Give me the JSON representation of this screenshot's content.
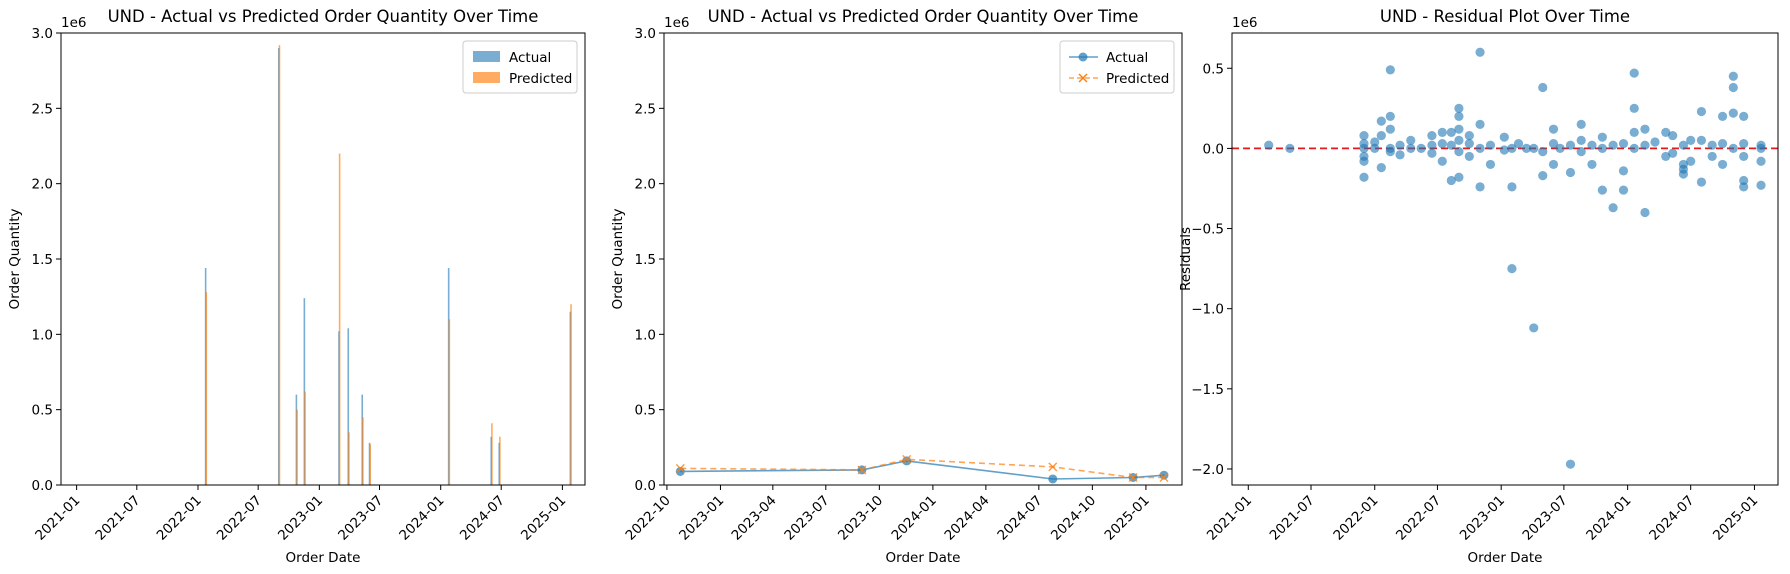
{
  "chart_data": [
    {
      "type": "bar",
      "title": "UND - Actual vs Predicted Order Quantity Over Time",
      "xlabel": "Order Date",
      "ylabel": "Order Quantity",
      "offset_text": "1e6",
      "xlim": [
        "2020-11-15",
        "2025-03-10"
      ],
      "ylim": [
        0,
        3.0
      ],
      "x_ticks": [
        "2021-01",
        "2021-07",
        "2022-01",
        "2022-07",
        "2023-01",
        "2023-07",
        "2024-01",
        "2024-07",
        "2025-01"
      ],
      "y_ticks": [
        "0.0",
        "0.5",
        "1.0",
        "1.5",
        "2.0",
        "2.5",
        "3.0"
      ],
      "legend": "top-right",
      "series": [
        {
          "name": "Actual",
          "color": "#1f77b4",
          "points": [
            [
              "2022-01-24",
              1.44
            ],
            [
              "2022-09-01",
              2.9
            ],
            [
              "2022-10-24",
              0.6
            ],
            [
              "2022-11-17",
              1.24
            ],
            [
              "2023-03-01",
              1.02
            ],
            [
              "2023-03-29",
              1.04
            ],
            [
              "2023-05-10",
              0.6
            ],
            [
              "2023-06-01",
              0.28
            ],
            [
              "2024-01-25",
              1.44
            ],
            [
              "2024-06-01",
              0.32
            ],
            [
              "2024-06-25",
              0.28
            ],
            [
              "2025-01-25",
              1.15
            ]
          ]
        },
        {
          "name": "Predicted",
          "color": "#ff7f0e",
          "points": [
            [
              "2022-01-26",
              1.28
            ],
            [
              "2022-09-03",
              2.92
            ],
            [
              "2022-10-26",
              0.5
            ],
            [
              "2022-11-19",
              0.62
            ],
            [
              "2023-03-03",
              2.2
            ],
            [
              "2023-03-31",
              0.35
            ],
            [
              "2023-05-12",
              0.45
            ],
            [
              "2023-06-03",
              0.27
            ],
            [
              "2024-01-27",
              1.1
            ],
            [
              "2024-06-03",
              0.41
            ],
            [
              "2024-06-27",
              0.32
            ],
            [
              "2025-01-27",
              1.2
            ]
          ]
        }
      ]
    },
    {
      "type": "line",
      "title": "UND - Actual vs Predicted Order Quantity Over Time",
      "xlabel": "Order Date",
      "ylabel": "Order Quantity",
      "offset_text": "1e6",
      "xlim": [
        "2022-09-26",
        "2025-03-04"
      ],
      "ylim": [
        0,
        3.0
      ],
      "x_ticks": [
        "2022-10",
        "2023-01",
        "2023-04",
        "2023-07",
        "2023-10",
        "2024-01",
        "2024-04",
        "2024-07",
        "2024-10",
        "2025-01"
      ],
      "y_ticks": [
        "0.0",
        "0.5",
        "1.0",
        "1.5",
        "2.0",
        "2.5",
        "3.0"
      ],
      "legend": "top-right",
      "series": [
        {
          "name": "Actual",
          "color": "#1f77b4",
          "marker": "circle",
          "points": [
            [
              "2022-10-24",
              0.09
            ],
            [
              "2023-09-01",
              0.1
            ],
            [
              "2023-11-17",
              0.16
            ],
            [
              "2024-07-25",
              0.04
            ],
            [
              "2024-12-10",
              0.05
            ],
            [
              "2025-02-01",
              0.065
            ]
          ]
        },
        {
          "name": "Predicted",
          "color": "#ff7f0e",
          "marker": "x",
          "points": [
            [
              "2022-10-24",
              0.11
            ],
            [
              "2023-09-01",
              0.1
            ],
            [
              "2023-11-17",
              0.17
            ],
            [
              "2024-07-25",
              0.12
            ],
            [
              "2024-12-10",
              0.05
            ],
            [
              "2025-02-01",
              0.05
            ]
          ]
        }
      ]
    },
    {
      "type": "scatter",
      "title": "UND - Residual Plot Over Time",
      "xlabel": "Order Date",
      "ylabel": "Residuals",
      "offset_text": "1e6",
      "xlim": [
        "2020-11-15",
        "2025-03-10"
      ],
      "ylim": [
        -2.1,
        0.72
      ],
      "x_ticks": [
        "2021-01",
        "2021-07",
        "2022-01",
        "2022-07",
        "2023-01",
        "2023-07",
        "2024-01",
        "2024-07",
        "2025-01"
      ],
      "y_ticks": [
        "−2.0",
        "−1.5",
        "−1.0",
        "−0.5",
        "0.0",
        "0.5"
      ],
      "reference_line": {
        "y": 0,
        "color": "#e41a1c",
        "style": "dashed"
      },
      "series": [
        {
          "color": "#1f77b4",
          "points": [
            [
              "2021-03-01",
              0.02
            ],
            [
              "2021-05-01",
              0.0
            ],
            [
              "2021-12-01",
              0.08
            ],
            [
              "2021-12-01",
              0.0
            ],
            [
              "2021-12-01",
              -0.05
            ],
            [
              "2021-12-01",
              -0.18
            ],
            [
              "2021-12-01",
              -0.08
            ],
            [
              "2021-12-01",
              0.03
            ],
            [
              "2022-01-01",
              0.0
            ],
            [
              "2022-01-01",
              0.04
            ],
            [
              "2022-01-20",
              0.17
            ],
            [
              "2022-01-20",
              -0.12
            ],
            [
              "2022-01-20",
              0.08
            ],
            [
              "2022-02-15",
              0.49
            ],
            [
              "2022-02-15",
              0.2
            ],
            [
              "2022-02-15",
              0.12
            ],
            [
              "2022-02-15",
              -0.02
            ],
            [
              "2022-02-15",
              0.0
            ],
            [
              "2022-03-15",
              0.02
            ],
            [
              "2022-03-15",
              -0.04
            ],
            [
              "2022-04-15",
              0.0
            ],
            [
              "2022-04-15",
              0.05
            ],
            [
              "2022-05-15",
              0.0
            ],
            [
              "2022-06-15",
              0.08
            ],
            [
              "2022-06-15",
              0.02
            ],
            [
              "2022-06-15",
              -0.03
            ],
            [
              "2022-07-15",
              0.1
            ],
            [
              "2022-07-15",
              0.03
            ],
            [
              "2022-07-15",
              -0.08
            ],
            [
              "2022-08-10",
              0.1
            ],
            [
              "2022-08-10",
              -0.2
            ],
            [
              "2022-08-10",
              0.02
            ],
            [
              "2022-09-01",
              0.25
            ],
            [
              "2022-09-01",
              0.2
            ],
            [
              "2022-09-01",
              0.12
            ],
            [
              "2022-09-01",
              0.05
            ],
            [
              "2022-09-01",
              -0.02
            ],
            [
              "2022-09-01",
              -0.18
            ],
            [
              "2022-10-01",
              0.08
            ],
            [
              "2022-10-01",
              0.03
            ],
            [
              "2022-10-01",
              -0.05
            ],
            [
              "2022-11-01",
              0.6
            ],
            [
              "2022-11-01",
              0.15
            ],
            [
              "2022-11-01",
              -0.24
            ],
            [
              "2022-11-01",
              0.0
            ],
            [
              "2022-12-01",
              -0.1
            ],
            [
              "2022-12-01",
              0.02
            ],
            [
              "2023-01-10",
              0.07
            ],
            [
              "2023-01-10",
              -0.01
            ],
            [
              "2023-02-01",
              -0.75
            ],
            [
              "2023-02-01",
              -0.24
            ],
            [
              "2023-02-01",
              0.0
            ],
            [
              "2023-02-20",
              0.03
            ],
            [
              "2023-03-15",
              0.0
            ],
            [
              "2023-04-05",
              -1.12
            ],
            [
              "2023-04-05",
              0.0
            ],
            [
              "2023-05-01",
              0.38
            ],
            [
              "2023-05-01",
              -0.17
            ],
            [
              "2023-05-01",
              -0.02
            ],
            [
              "2023-06-01",
              0.12
            ],
            [
              "2023-06-01",
              -0.1
            ],
            [
              "2023-06-01",
              0.03
            ],
            [
              "2023-06-20",
              0.0
            ],
            [
              "2023-07-20",
              -1.97
            ],
            [
              "2023-07-20",
              -0.15
            ],
            [
              "2023-07-20",
              0.02
            ],
            [
              "2023-08-20",
              0.15
            ],
            [
              "2023-08-20",
              0.05
            ],
            [
              "2023-08-20",
              -0.02
            ],
            [
              "2023-09-20",
              -0.1
            ],
            [
              "2023-09-20",
              0.02
            ],
            [
              "2023-10-20",
              -0.26
            ],
            [
              "2023-10-20",
              0.07
            ],
            [
              "2023-10-20",
              0.0
            ],
            [
              "2023-11-20",
              -0.37
            ],
            [
              "2023-11-20",
              0.02
            ],
            [
              "2023-12-20",
              -0.26
            ],
            [
              "2023-12-20",
              -0.14
            ],
            [
              "2023-12-20",
              0.03
            ],
            [
              "2024-01-20",
              0.47
            ],
            [
              "2024-01-20",
              0.25
            ],
            [
              "2024-01-20",
              0.1
            ],
            [
              "2024-01-20",
              0.0
            ],
            [
              "2024-02-20",
              0.12
            ],
            [
              "2024-02-20",
              -0.4
            ],
            [
              "2024-02-20",
              0.02
            ],
            [
              "2024-03-20",
              0.04
            ],
            [
              "2024-04-20",
              0.1
            ],
            [
              "2024-04-20",
              -0.05
            ],
            [
              "2024-05-10",
              0.08
            ],
            [
              "2024-05-10",
              -0.03
            ],
            [
              "2024-06-10",
              0.02
            ],
            [
              "2024-06-10",
              -0.1
            ],
            [
              "2024-06-10",
              -0.13
            ],
            [
              "2024-06-10",
              -0.16
            ],
            [
              "2024-07-01",
              0.05
            ],
            [
              "2024-07-01",
              -0.08
            ],
            [
              "2024-08-01",
              0.23
            ],
            [
              "2024-08-01",
              0.05
            ],
            [
              "2024-08-01",
              -0.21
            ],
            [
              "2024-09-01",
              -0.05
            ],
            [
              "2024-09-01",
              0.02
            ],
            [
              "2024-10-01",
              0.2
            ],
            [
              "2024-10-01",
              0.03
            ],
            [
              "2024-10-01",
              -0.1
            ],
            [
              "2024-11-01",
              0.45
            ],
            [
              "2024-11-01",
              0.38
            ],
            [
              "2024-11-01",
              0.22
            ],
            [
              "2024-11-01",
              0.0
            ],
            [
              "2024-12-01",
              0.2
            ],
            [
              "2024-12-01",
              -0.2
            ],
            [
              "2024-12-01",
              -0.24
            ],
            [
              "2024-12-01",
              -0.05
            ],
            [
              "2024-12-01",
              0.03
            ],
            [
              "2025-01-20",
              0.0
            ],
            [
              "2025-01-20",
              -0.08
            ],
            [
              "2025-01-20",
              -0.23
            ],
            [
              "2025-01-20",
              0.02
            ]
          ]
        }
      ]
    }
  ]
}
